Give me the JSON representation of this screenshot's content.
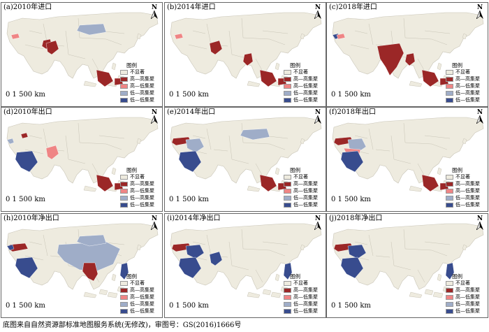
{
  "colors": {
    "land": "#eeebdf",
    "border": "#c8c4b6",
    "high_high": "#9b2727",
    "high_low": "#ef8585",
    "low_high": "#9fadc8",
    "low_low": "#384c8e"
  },
  "icons": {
    "north_arrow": "north-arrow-icon"
  },
  "legend": {
    "title": "图例",
    "items": [
      {
        "key": "not_significant",
        "label": "不显著"
      },
      {
        "key": "high_high",
        "label": "高—高集聚"
      },
      {
        "key": "high_low",
        "label": "高—低集聚"
      },
      {
        "key": "low_high",
        "label": "低—高集聚"
      },
      {
        "key": "low_low",
        "label": "低—低集聚"
      }
    ]
  },
  "north_label": "N",
  "scale_label": "0  1 500 km",
  "panels": [
    {
      "title": "(a)2010年进口",
      "regions": {
        "iran_ne": "high_high",
        "pakistan": "high_high",
        "caspian_w": "high_low",
        "mongolia": "low_high",
        "seasia": "high_high"
      }
    },
    {
      "title": "(b)2014年进口",
      "regions": {
        "caspian_w": "high_low",
        "pakistan": "high_high",
        "myanmar": "high_high",
        "seasia": "high_high"
      }
    },
    {
      "title": "(c)2018年进口",
      "regions": {
        "balkan": "low_low",
        "caspian_w": "high_low",
        "india": "high_high",
        "myanmar": "high_high",
        "seasia": "high_high"
      }
    },
    {
      "title": "(d)2010年出口",
      "regions": {
        "balkan": "low_high",
        "saudi": "low_low",
        "caucasus": "high_high",
        "pakistan": "high_low",
        "seasia": "high_high"
      }
    },
    {
      "title": "(e)2014年出口",
      "regions": {
        "turkey": "high_high",
        "iran": "low_high",
        "mongolia": "low_high",
        "saudi": "low_low",
        "seasia": "high_high"
      }
    },
    {
      "title": "(f)2018年出口",
      "regions": {
        "turkey": "high_high",
        "iran": "low_high",
        "gulf": "high_low",
        "saudi": "low_low",
        "seasia": "high_high"
      }
    },
    {
      "title": "(h)2010年净出口",
      "regions": {
        "turkey": "high_high",
        "balkan": "low_low",
        "saudi": "low_low",
        "china": "low_high",
        "mongolia": "low_high",
        "indochina": "high_high",
        "philippines": "low_low"
      }
    },
    {
      "title": "(i)2014年净出口",
      "regions": {
        "turkey": "high_high",
        "iran": "low_low",
        "pakistan": "low_low",
        "saudi": "low_low",
        "philippines": "low_low"
      }
    },
    {
      "title": "(j)2018年净出口",
      "regions": {
        "turkey": "high_high",
        "iran": "low_low",
        "saudi": "low_low",
        "philippines": "low_low"
      }
    }
  ],
  "footer": "底图来自自然资源部标准地图服务系统(无修改)，审图号：GS(2016)1666号"
}
